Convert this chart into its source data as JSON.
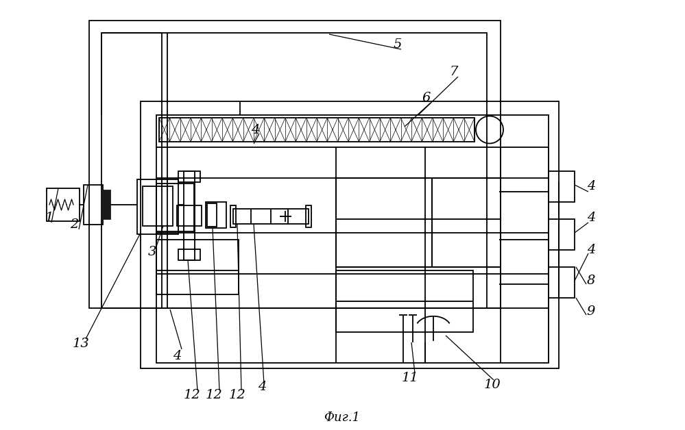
{
  "bg_color": "#ffffff",
  "line_color": "#000000",
  "lw": 1.3,
  "title": "Фиг.1"
}
